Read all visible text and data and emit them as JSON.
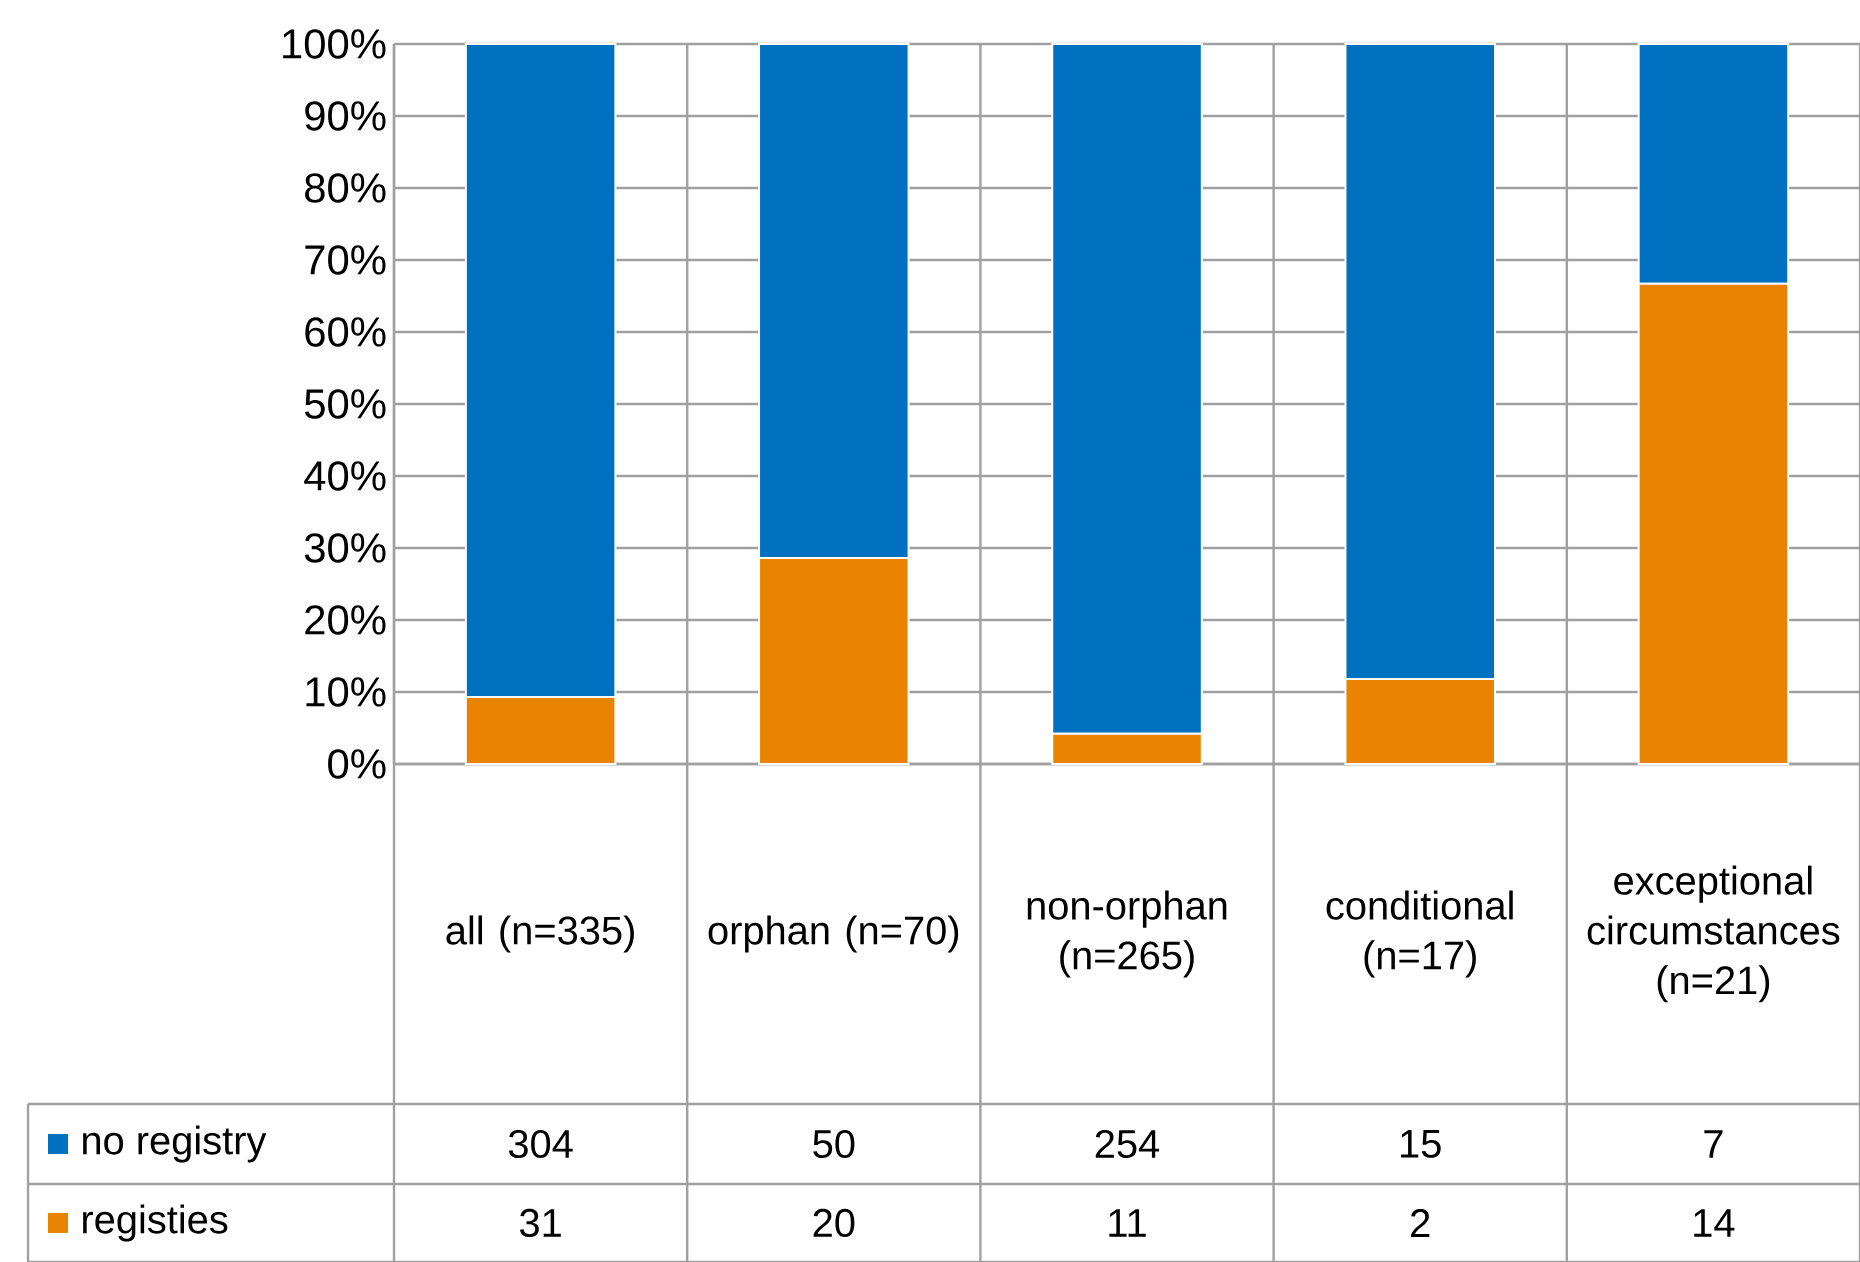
{
  "chart_data": {
    "type": "bar",
    "stacked": true,
    "categories": [
      "all (n=335)",
      "orphan (n=70)",
      "non-orphan (n=265)",
      "conditional (n=17)",
      "exceptional circumstances (n=21)"
    ],
    "series": [
      {
        "name": "registies",
        "color": "#e98300",
        "values": [
          9.3,
          28.6,
          4.2,
          11.8,
          66.7
        ]
      },
      {
        "name": "no registry",
        "color": "#0070c0",
        "values": [
          90.7,
          71.4,
          95.8,
          88.2,
          33.3
        ]
      }
    ],
    "annotations": [
      "304",
      "50",
      "254",
      "15",
      "7",
      "31",
      "20",
      "11",
      "2",
      "14"
    ],
    "ylim": [
      0,
      100
    ],
    "yticks": [
      {
        "value": 0,
        "label": "0%"
      },
      {
        "value": 10,
        "label": "10%"
      },
      {
        "value": 20,
        "label": "20%"
      },
      {
        "value": 30,
        "label": "30%"
      },
      {
        "value": 40,
        "label": "40%"
      },
      {
        "value": 50,
        "label": "50%"
      },
      {
        "value": 60,
        "label": "60%"
      },
      {
        "value": 70,
        "label": "70%"
      },
      {
        "value": 80,
        "label": "80%"
      },
      {
        "value": 90,
        "label": "90%"
      },
      {
        "value": 100,
        "label": "100%"
      }
    ],
    "grid": true,
    "legend": "bottom left"
  }
}
